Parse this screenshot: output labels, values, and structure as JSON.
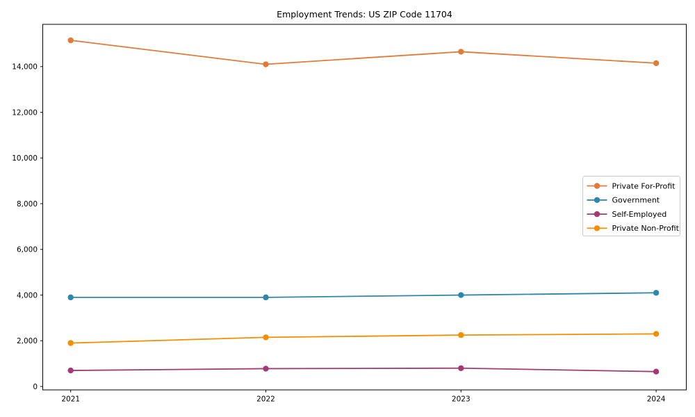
{
  "chart_data": {
    "type": "line",
    "title": "Employment Trends: US ZIP Code 11704",
    "xlabel": "",
    "ylabel": "",
    "x": [
      "2021",
      "2022",
      "2023",
      "2024"
    ],
    "series": [
      {
        "name": "Private For-Profit",
        "color": "#e07b39",
        "values": [
          15150,
          14100,
          14650,
          14150
        ]
      },
      {
        "name": "Government",
        "color": "#2e86ab",
        "values": [
          3900,
          3900,
          4000,
          4100
        ]
      },
      {
        "name": "Self-Employed",
        "color": "#a23b72",
        "values": [
          700,
          780,
          800,
          650
        ]
      },
      {
        "name": "Private Non-Profit",
        "color": "#f18f01",
        "values": [
          1900,
          2150,
          2250,
          2300
        ]
      }
    ],
    "ylim": [
      -150,
      15850
    ],
    "yticks": [
      0,
      2000,
      4000,
      6000,
      8000,
      10000,
      12000,
      14000
    ],
    "ytick_labels": [
      "0",
      "2,000",
      "4,000",
      "6,000",
      "8,000",
      "10,000",
      "12,000",
      "14,000"
    ],
    "grid": false,
    "legend": {
      "position": "center-right",
      "frame_color": "#cccccc",
      "background": "#ffffff"
    },
    "axis_color": "#000000",
    "background": "#ffffff",
    "marker": "circle"
  }
}
